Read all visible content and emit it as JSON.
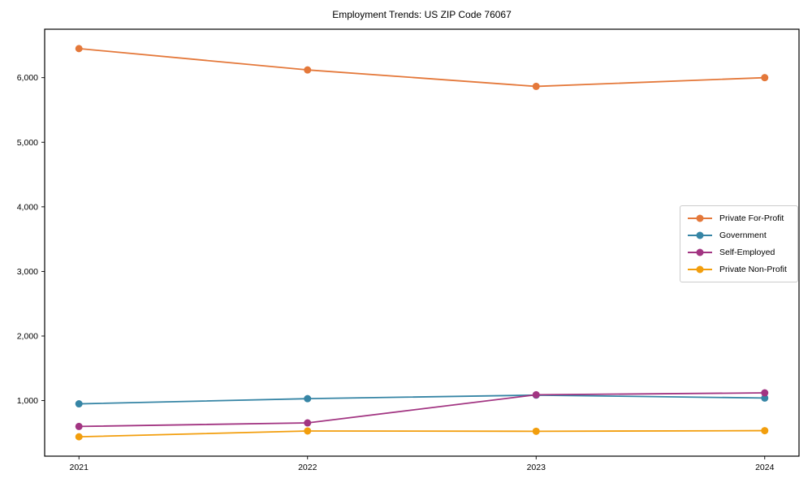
{
  "title": "Employment Trends: US ZIP Code 76067",
  "chart_data": {
    "type": "line",
    "title": "Employment Trends: US ZIP Code 76067",
    "xlabel": "",
    "ylabel": "",
    "x": [
      2021,
      2022,
      2023,
      2024
    ],
    "xticks": [
      2021,
      2022,
      2023,
      2024
    ],
    "yticks": [
      1000,
      2000,
      3000,
      4000,
      5000,
      6000
    ],
    "ytick_labels": [
      "1,000",
      "2,000",
      "3,000",
      "4,000",
      "5,000",
      "6,000"
    ],
    "xlim": [
      2020.85,
      2024.15
    ],
    "ylim": [
      140,
      6750
    ],
    "grid": false,
    "legend_position": "center-right",
    "series": [
      {
        "name": "Private For-Profit",
        "color": "#e4783a",
        "values": [
          6450,
          6120,
          5865,
          6000
        ]
      },
      {
        "name": "Government",
        "color": "#3685a5",
        "values": [
          950,
          1030,
          1085,
          1040
        ]
      },
      {
        "name": "Self-Employed",
        "color": "#a23582",
        "values": [
          600,
          655,
          1090,
          1120
        ]
      },
      {
        "name": "Private Non-Profit",
        "color": "#f29e0d",
        "values": [
          440,
          530,
          525,
          535
        ]
      }
    ],
    "axes": {
      "frame_color": "#000000",
      "background": "#ffffff"
    }
  }
}
